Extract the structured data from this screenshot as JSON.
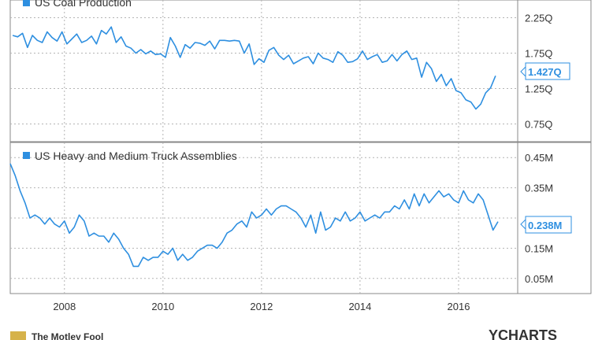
{
  "colors": {
    "accent": "#2e8fe0",
    "grid": "#b4b4b4",
    "axis": "#888888",
    "text": "#333333"
  },
  "footer": {
    "brand_left": "The Motley Fool",
    "brand_right": "YCHARTS"
  },
  "chart_data": [
    {
      "type": "line",
      "title": "",
      "series": [
        {
          "name": "US Coal Production",
          "unit": "Q"
        }
      ],
      "latest_label": "1.427Q",
      "ylim": [
        0.5,
        2.5
      ],
      "yticks": [
        0.75,
        1.25,
        1.75,
        2.25
      ],
      "ytick_labels": [
        "0.75Q",
        "1.25Q",
        "1.75Q",
        "2.25Q"
      ],
      "xlim": [
        2006.9,
        2017.2
      ],
      "grid": true,
      "legend": "top-left",
      "x": [
        2006.95,
        2007.05,
        2007.15,
        2007.25,
        2007.35,
        2007.45,
        2007.55,
        2007.65,
        2007.75,
        2007.85,
        2007.95,
        2008.05,
        2008.15,
        2008.25,
        2008.35,
        2008.45,
        2008.55,
        2008.65,
        2008.75,
        2008.85,
        2008.95,
        2009.05,
        2009.15,
        2009.25,
        2009.35,
        2009.45,
        2009.55,
        2009.65,
        2009.75,
        2009.85,
        2009.95,
        2010.05,
        2010.15,
        2010.25,
        2010.35,
        2010.45,
        2010.55,
        2010.65,
        2010.75,
        2010.85,
        2010.95,
        2011.05,
        2011.15,
        2011.25,
        2011.35,
        2011.45,
        2011.55,
        2011.65,
        2011.75,
        2011.85,
        2011.95,
        2012.05,
        2012.15,
        2012.25,
        2012.35,
        2012.45,
        2012.55,
        2012.65,
        2012.75,
        2012.85,
        2012.95,
        2013.05,
        2013.15,
        2013.25,
        2013.35,
        2013.45,
        2013.55,
        2013.65,
        2013.75,
        2013.85,
        2013.95,
        2014.05,
        2014.15,
        2014.25,
        2014.35,
        2014.45,
        2014.55,
        2014.65,
        2014.75,
        2014.85,
        2014.95,
        2015.05,
        2015.15,
        2015.25,
        2015.35,
        2015.45,
        2015.55,
        2015.65,
        2015.75,
        2015.85,
        2015.95,
        2016.05,
        2016.15,
        2016.25,
        2016.35,
        2016.45,
        2016.55,
        2016.65,
        2016.75
      ],
      "values": [
        2.0,
        1.98,
        2.03,
        1.83,
        2.0,
        1.93,
        1.9,
        2.05,
        1.97,
        1.92,
        2.05,
        1.88,
        1.95,
        2.02,
        1.9,
        1.93,
        1.99,
        1.88,
        2.07,
        2.02,
        2.12,
        1.9,
        1.98,
        1.85,
        1.82,
        1.75,
        1.8,
        1.74,
        1.78,
        1.73,
        1.74,
        1.69,
        1.97,
        1.85,
        1.69,
        1.87,
        1.82,
        1.9,
        1.89,
        1.86,
        1.92,
        1.81,
        1.93,
        1.93,
        1.92,
        1.93,
        1.92,
        1.75,
        1.88,
        1.59,
        1.67,
        1.62,
        1.79,
        1.83,
        1.72,
        1.66,
        1.72,
        1.6,
        1.64,
        1.68,
        1.7,
        1.6,
        1.75,
        1.68,
        1.66,
        1.62,
        1.77,
        1.72,
        1.62,
        1.63,
        1.67,
        1.78,
        1.66,
        1.7,
        1.73,
        1.62,
        1.64,
        1.73,
        1.64,
        1.73,
        1.78,
        1.66,
        1.68,
        1.41,
        1.62,
        1.53,
        1.35,
        1.45,
        1.29,
        1.39,
        1.22,
        1.19,
        1.09,
        1.06,
        0.96,
        1.03,
        1.19,
        1.26,
        1.43
      ]
    },
    {
      "type": "line",
      "title": "",
      "series": [
        {
          "name": "US Heavy and Medium Truck Assemblies",
          "unit": "M"
        }
      ],
      "latest_label": "0.238M",
      "ylim": [
        0.0,
        0.5
      ],
      "yticks": [
        0.05,
        0.15,
        0.25,
        0.35,
        0.45
      ],
      "ytick_labels": [
        "0.05M",
        "0.15M",
        "",
        "0.35M",
        "0.45M"
      ],
      "xlim": [
        2006.9,
        2017.2
      ],
      "xticks": [
        2008,
        2010,
        2012,
        2014,
        2016
      ],
      "xtick_labels": [
        "2008",
        "2010",
        "2012",
        "2014",
        "2016"
      ],
      "grid": true,
      "legend": "top-left",
      "x": [
        2006.9,
        2007.0,
        2007.1,
        2007.2,
        2007.3,
        2007.4,
        2007.5,
        2007.6,
        2007.7,
        2007.8,
        2007.9,
        2008.0,
        2008.1,
        2008.2,
        2008.3,
        2008.4,
        2008.5,
        2008.6,
        2008.7,
        2008.8,
        2008.9,
        2009.0,
        2009.1,
        2009.2,
        2009.3,
        2009.4,
        2009.5,
        2009.6,
        2009.7,
        2009.8,
        2009.9,
        2010.0,
        2010.1,
        2010.2,
        2010.3,
        2010.4,
        2010.5,
        2010.6,
        2010.7,
        2010.8,
        2010.9,
        2011.0,
        2011.1,
        2011.2,
        2011.3,
        2011.4,
        2011.5,
        2011.6,
        2011.7,
        2011.8,
        2011.9,
        2012.0,
        2012.1,
        2012.2,
        2012.3,
        2012.4,
        2012.5,
        2012.6,
        2012.7,
        2012.8,
        2012.9,
        2013.0,
        2013.1,
        2013.2,
        2013.3,
        2013.4,
        2013.5,
        2013.6,
        2013.7,
        2013.8,
        2013.9,
        2014.0,
        2014.1,
        2014.2,
        2014.3,
        2014.4,
        2014.5,
        2014.6,
        2014.7,
        2014.8,
        2014.9,
        2015.0,
        2015.1,
        2015.2,
        2015.3,
        2015.4,
        2015.5,
        2015.6,
        2015.7,
        2015.8,
        2015.9,
        2016.0,
        2016.1,
        2016.2,
        2016.3,
        2016.4,
        2016.5,
        2016.6,
        2016.7,
        2016.8
      ],
      "values": [
        0.43,
        0.39,
        0.34,
        0.3,
        0.25,
        0.26,
        0.25,
        0.23,
        0.25,
        0.23,
        0.22,
        0.24,
        0.2,
        0.22,
        0.26,
        0.24,
        0.19,
        0.2,
        0.19,
        0.19,
        0.17,
        0.2,
        0.18,
        0.15,
        0.13,
        0.09,
        0.09,
        0.12,
        0.11,
        0.12,
        0.12,
        0.14,
        0.13,
        0.15,
        0.11,
        0.13,
        0.11,
        0.12,
        0.14,
        0.15,
        0.16,
        0.16,
        0.15,
        0.17,
        0.2,
        0.21,
        0.23,
        0.24,
        0.22,
        0.27,
        0.25,
        0.26,
        0.28,
        0.26,
        0.28,
        0.29,
        0.29,
        0.28,
        0.27,
        0.25,
        0.22,
        0.26,
        0.2,
        0.27,
        0.21,
        0.22,
        0.25,
        0.24,
        0.27,
        0.24,
        0.25,
        0.27,
        0.24,
        0.25,
        0.26,
        0.25,
        0.27,
        0.27,
        0.29,
        0.28,
        0.31,
        0.28,
        0.33,
        0.29,
        0.33,
        0.3,
        0.32,
        0.34,
        0.32,
        0.33,
        0.31,
        0.3,
        0.34,
        0.31,
        0.3,
        0.33,
        0.31,
        0.26,
        0.21,
        0.238
      ]
    }
  ]
}
